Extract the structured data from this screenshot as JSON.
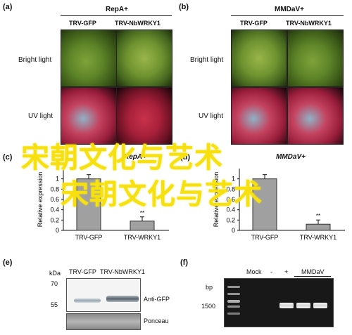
{
  "panels": {
    "a": {
      "label": "(a)",
      "title": "RepA+",
      "cols": [
        "TRV-GFP",
        "TRV-NbWRKY1"
      ],
      "rows": [
        "Bright light",
        "UV light"
      ]
    },
    "b": {
      "label": "(b)",
      "title": "MMDaV+",
      "cols": [
        "TRV-GFP",
        "TRV-NbWRKY1"
      ],
      "rows": [
        "Bright light",
        "UV light"
      ]
    },
    "c": {
      "label": "(c)",
      "title": "RepA+"
    },
    "d": {
      "label": "(d)",
      "title": "MMDaV+"
    },
    "e": {
      "label": "(e)",
      "kda": "kDa",
      "lanes": [
        "TRV-GFP",
        "TRV-NbWRKY1"
      ],
      "marker_70": "70",
      "marker_55": "55",
      "anti": "Anti-GFP",
      "ponceau": "Ponceau"
    },
    "f": {
      "label": "(f)",
      "bp": "bp",
      "lanes": [
        "Mock",
        "-",
        "+",
        "MMDaV"
      ],
      "marker": "1500"
    }
  },
  "watermark": {
    "line1": "宋朝文化与艺术",
    "line2": "宋朝文化与艺术"
  },
  "chart_data": [
    {
      "type": "bar",
      "panel": "c",
      "categories": [
        "TRV-GFP",
        "TRV-WRKY1"
      ],
      "values": [
        1.0,
        0.18
      ],
      "annotations": [
        "",
        "**"
      ],
      "ylabel": "Relative expression",
      "yticks": [
        "0",
        "0.2",
        "0.4",
        "0.6",
        "0.8",
        "1"
      ],
      "ylim": [
        0,
        1.2
      ]
    },
    {
      "type": "bar",
      "panel": "d",
      "categories": [
        "TRV-GFP",
        "TRV-WRKY1"
      ],
      "values": [
        1.0,
        0.12
      ],
      "annotations": [
        "",
        "**"
      ],
      "ylabel": "Relative expression",
      "yticks": [
        "0",
        "0.2",
        "0.4",
        "0.6",
        "0.8",
        "1"
      ],
      "ylim": [
        0,
        1.2
      ]
    }
  ],
  "colors": {
    "watermark": "#f7e010",
    "bar": "#999999"
  }
}
